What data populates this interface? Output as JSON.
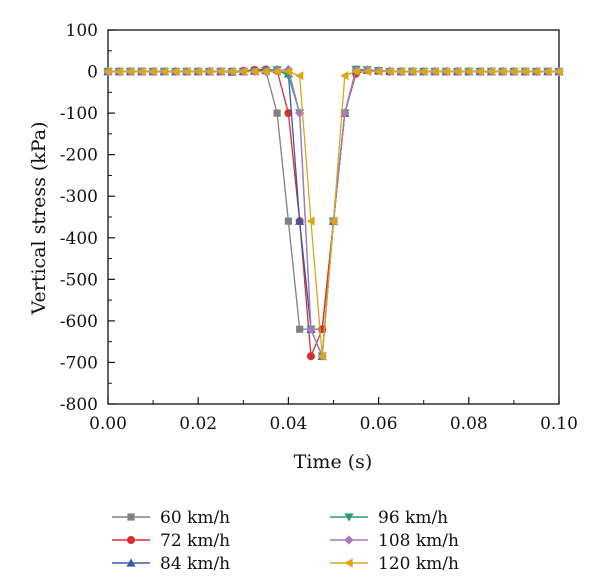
{
  "chart_data": {
    "type": "line",
    "xlabel": "Time (s)",
    "ylabel": "Vertical stress (kPa)",
    "xlim": [
      0.0,
      0.1
    ],
    "ylim": [
      -800,
      100
    ],
    "xticks": [
      "0.00",
      "0.02",
      "0.04",
      "0.06",
      "0.08",
      "0.10"
    ],
    "yticks": [
      "100",
      "0",
      "-100",
      "-200",
      "-300",
      "-400",
      "-500",
      "-600",
      "-700",
      "-800"
    ],
    "grid": false,
    "legend_position": "bottom",
    "series": [
      {
        "name": "60 km/h",
        "color": "#808080",
        "marker": "square",
        "x": [
          0,
          0.0025,
          0.005,
          0.0075,
          0.01,
          0.0125,
          0.015,
          0.0175,
          0.02,
          0.0225,
          0.025,
          0.0275,
          0.03,
          0.0325,
          0.035,
          0.0375,
          0.04,
          0.0425,
          0.045,
          0.0475,
          0.05,
          0.0525,
          0.055,
          0.0575,
          0.06,
          0.0625,
          0.065,
          0.0675,
          0.07,
          0.0725,
          0.075,
          0.0775,
          0.08,
          0.0825,
          0.085,
          0.0875,
          0.09,
          0.0925,
          0.095,
          0.0975,
          0.1
        ],
        "y": [
          0,
          0,
          0,
          0,
          0,
          0,
          0,
          0,
          0,
          0,
          0,
          -2,
          0,
          3,
          2,
          -100,
          -360,
          -620,
          -620,
          -620,
          -360,
          -100,
          2,
          3,
          1,
          0,
          0,
          0,
          0,
          0,
          0,
          0,
          0,
          0,
          0,
          0,
          0,
          0,
          0,
          0,
          0
        ]
      },
      {
        "name": "72 km/h",
        "color": "#d62f2f",
        "marker": "circle",
        "x": [
          0,
          0.0025,
          0.005,
          0.0075,
          0.01,
          0.0125,
          0.015,
          0.0175,
          0.02,
          0.0225,
          0.025,
          0.0275,
          0.03,
          0.0325,
          0.035,
          0.0375,
          0.04,
          0.0425,
          0.045,
          0.0475,
          0.05,
          0.0525,
          0.055,
          0.0575,
          0.06,
          0.0625,
          0.065,
          0.0675,
          0.07,
          0.0725,
          0.075,
          0.0775,
          0.08,
          0.0825,
          0.085,
          0.0875,
          0.09,
          0.0925,
          0.095,
          0.0975,
          0.1
        ],
        "y": [
          0,
          0,
          0,
          0,
          0,
          0,
          0,
          0,
          0,
          0,
          0,
          0,
          2,
          4,
          5,
          2,
          -100,
          -360,
          -685,
          -620,
          -360,
          -100,
          -5,
          3,
          2,
          0,
          0,
          0,
          0,
          0,
          0,
          0,
          0,
          0,
          0,
          0,
          0,
          0,
          0,
          0,
          0
        ]
      },
      {
        "name": "84 km/h",
        "color": "#3a58b0",
        "marker": "triangle-up",
        "x": [
          0,
          0.0025,
          0.005,
          0.0075,
          0.01,
          0.0125,
          0.015,
          0.0175,
          0.02,
          0.0225,
          0.025,
          0.0275,
          0.03,
          0.0325,
          0.035,
          0.0375,
          0.04,
          0.0425,
          0.045,
          0.0475,
          0.05,
          0.0525,
          0.055,
          0.0575,
          0.06,
          0.0625,
          0.065,
          0.0675,
          0.07,
          0.0725,
          0.075,
          0.0775,
          0.08,
          0.0825,
          0.085,
          0.0875,
          0.09,
          0.0925,
          0.095,
          0.0975,
          0.1
        ],
        "y": [
          0,
          0,
          0,
          0,
          0,
          0,
          0,
          0,
          0,
          0,
          0,
          0,
          0,
          1,
          3,
          5,
          -5,
          -360,
          -620,
          -685,
          -360,
          -100,
          5,
          4,
          2,
          1,
          0,
          0,
          0,
          0,
          0,
          0,
          0,
          0,
          0,
          0,
          0,
          0,
          0,
          0,
          0
        ]
      },
      {
        "name": "96 km/h",
        "color": "#27a06a",
        "marker": "triangle-down",
        "x": [
          0,
          0.0025,
          0.005,
          0.0075,
          0.01,
          0.0125,
          0.015,
          0.0175,
          0.02,
          0.0225,
          0.025,
          0.0275,
          0.03,
          0.0325,
          0.035,
          0.0375,
          0.04,
          0.0425,
          0.045,
          0.0475,
          0.05,
          0.0525,
          0.055,
          0.0575,
          0.06,
          0.0625,
          0.065,
          0.0675,
          0.07,
          0.0725,
          0.075,
          0.0775,
          0.08,
          0.0825,
          0.085,
          0.0875,
          0.09,
          0.0925,
          0.095,
          0.0975,
          0.1
        ],
        "y": [
          0,
          0,
          0,
          0,
          0,
          0,
          0,
          0,
          0,
          0,
          0,
          0,
          0,
          0,
          2,
          4,
          -10,
          -100,
          -620,
          -685,
          -360,
          -100,
          5,
          4,
          2,
          0,
          0,
          0,
          0,
          0,
          0,
          0,
          0,
          0,
          0,
          0,
          0,
          0,
          0,
          0,
          0
        ]
      },
      {
        "name": "108 km/h",
        "color": "#a57ac0",
        "marker": "diamond",
        "x": [
          0,
          0.0025,
          0.005,
          0.0075,
          0.01,
          0.0125,
          0.015,
          0.0175,
          0.02,
          0.0225,
          0.025,
          0.0275,
          0.03,
          0.0325,
          0.035,
          0.0375,
          0.04,
          0.0425,
          0.045,
          0.0475,
          0.05,
          0.0525,
          0.055,
          0.0575,
          0.06,
          0.0625,
          0.065,
          0.0675,
          0.07,
          0.0725,
          0.075,
          0.0775,
          0.08,
          0.0825,
          0.085,
          0.0875,
          0.09,
          0.0925,
          0.095,
          0.0975,
          0.1
        ],
        "y": [
          0,
          0,
          0,
          0,
          0,
          0,
          0,
          0,
          0,
          0,
          0,
          0,
          0,
          0,
          0,
          2,
          5,
          -100,
          -620,
          -685,
          -360,
          -100,
          3,
          4,
          2,
          1,
          0,
          0,
          0,
          0,
          0,
          0,
          0,
          0,
          0,
          0,
          0,
          0,
          0,
          0,
          0
        ]
      },
      {
        "name": "120 km/h",
        "color": "#d9a81a",
        "marker": "triangle-left",
        "x": [
          0,
          0.0025,
          0.005,
          0.0075,
          0.01,
          0.0125,
          0.015,
          0.0175,
          0.02,
          0.0225,
          0.025,
          0.0275,
          0.03,
          0.0325,
          0.035,
          0.0375,
          0.04,
          0.0425,
          0.045,
          0.0475,
          0.05,
          0.0525,
          0.055,
          0.0575,
          0.06,
          0.0625,
          0.065,
          0.0675,
          0.07,
          0.0725,
          0.075,
          0.0775,
          0.08,
          0.0825,
          0.085,
          0.0875,
          0.09,
          0.0925,
          0.095,
          0.0975,
          0.1
        ],
        "y": [
          0,
          0,
          0,
          0,
          0,
          0,
          0,
          0,
          0,
          0,
          0,
          0,
          0,
          0,
          0,
          0,
          0,
          -10,
          -360,
          -685,
          -360,
          -10,
          0,
          0,
          0,
          0,
          0,
          0,
          0,
          0,
          0,
          0,
          0,
          0,
          0,
          0,
          0,
          0,
          0,
          0,
          0
        ]
      }
    ]
  }
}
